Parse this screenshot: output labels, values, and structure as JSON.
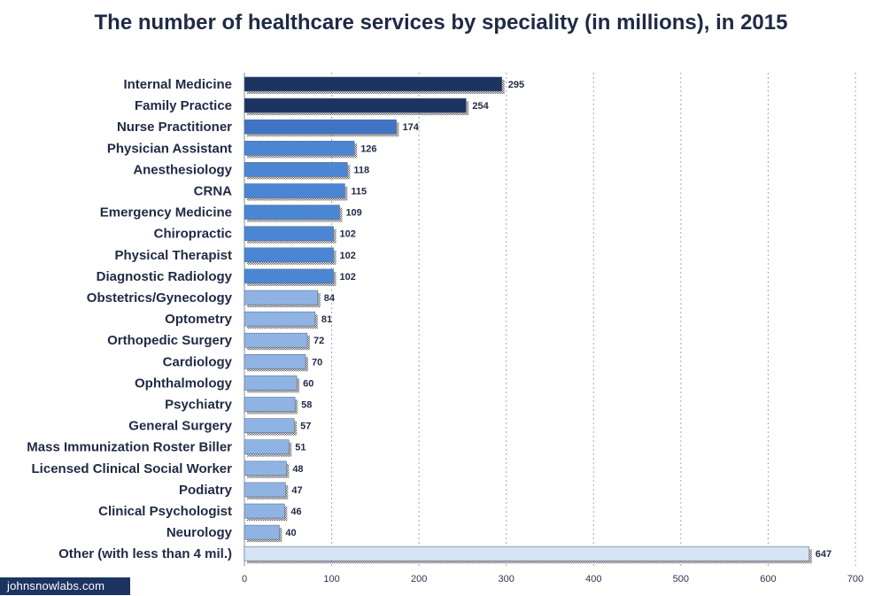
{
  "chart_data": {
    "type": "bar",
    "orientation": "horizontal",
    "title": "The number of healthcare services by speciality (in millions), in 2015",
    "xlabel": "",
    "ylabel": "",
    "xlim": [
      0,
      700
    ],
    "xticks": [
      0,
      100,
      200,
      300,
      400,
      500,
      600,
      700
    ],
    "grid": true,
    "categories": [
      "Internal Medicine",
      "Family Practice",
      "Nurse Practitioner",
      "Physician Assistant",
      "Anesthesiology",
      "CRNA",
      "Emergency Medicine",
      "Chiropractic",
      "Physical Therapist",
      "Diagnostic Radiology",
      "Obstetrics/Gynecology",
      "Optometry",
      "Orthopedic Surgery",
      "Cardiology",
      "Ophthalmology",
      "Psychiatry",
      "General Surgery",
      "Mass Immunization Roster Biller",
      "Licensed Clinical Social Worker",
      "Podiatry",
      "Clinical Psychologist",
      "Neurology",
      "Other (with less than 4 mil.)"
    ],
    "values": [
      295,
      254,
      174,
      126,
      118,
      115,
      109,
      102,
      102,
      102,
      84,
      81,
      72,
      70,
      60,
      58,
      57,
      51,
      48,
      47,
      46,
      40,
      647
    ],
    "colors": [
      "#1d3461",
      "#1d3461",
      "#3f74c4",
      "#4a86d4",
      "#4a86d4",
      "#4a86d4",
      "#4a86d4",
      "#4a86d4",
      "#4a86d4",
      "#4a86d4",
      "#8fb4e3",
      "#8fb4e3",
      "#8fb4e3",
      "#8fb4e3",
      "#8fb4e3",
      "#8fb4e3",
      "#8fb4e3",
      "#8fb4e3",
      "#8fb4e3",
      "#8fb4e3",
      "#8fb4e3",
      "#8fb4e3",
      "#d6e4f5"
    ]
  },
  "watermark": "johnsnowlabs.com"
}
